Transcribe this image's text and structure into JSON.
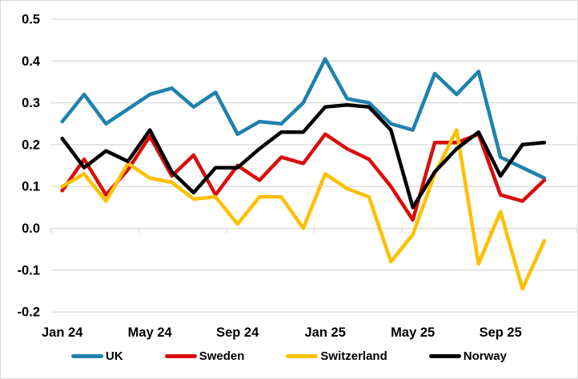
{
  "chart_data": {
    "type": "line",
    "title": "",
    "xlabel": "",
    "ylabel": "",
    "categories": [
      "Jan 24",
      "Feb 24",
      "Mar 24",
      "Apr 24",
      "May 24",
      "Jun 24",
      "Jul 24",
      "Aug 24",
      "Sep 24",
      "Oct 24",
      "Nov 24",
      "Dec 24",
      "Jan 25",
      "Feb 25",
      "Mar 25",
      "Apr 25",
      "May 25",
      "Jun 25",
      "Jul 25",
      "Aug 25",
      "Sep 25",
      "Oct 25",
      "Nov 25"
    ],
    "x_tick_labels": [
      "Jan 24",
      "May 24",
      "Sep 24",
      "Jan 25",
      "May 25",
      "Sep 25"
    ],
    "x_tick_every": 4,
    "y_ticks": [
      "0.5",
      "0.4",
      "0.3",
      "0.2",
      "0.1",
      "0.0",
      "-0.1",
      "-0.2"
    ],
    "ylim": [
      -0.2,
      0.5
    ],
    "grid": true,
    "legend_position": "bottom",
    "gridline_color": "#D9D9D9",
    "series": [
      {
        "name": "UK",
        "color": "#1F81AD",
        "values": [
          0.255,
          0.32,
          0.25,
          0.285,
          0.32,
          0.335,
          0.29,
          0.325,
          0.225,
          0.255,
          0.25,
          0.3,
          0.405,
          0.31,
          0.3,
          0.25,
          0.235,
          0.37,
          0.32,
          0.375,
          0.17,
          0.145,
          0.12
        ]
      },
      {
        "name": "Sweden",
        "color": "#D90D0D",
        "values": [
          0.09,
          0.165,
          0.08,
          0.14,
          0.22,
          0.125,
          0.175,
          0.08,
          0.15,
          0.115,
          0.17,
          0.155,
          0.225,
          0.19,
          0.165,
          0.1,
          0.02,
          0.205,
          0.205,
          0.225,
          0.08,
          0.065,
          0.115
        ]
      },
      {
        "name": "Switzerland",
        "color": "#FFC000",
        "values": [
          0.1,
          0.13,
          0.065,
          0.155,
          0.12,
          0.11,
          0.07,
          0.075,
          0.01,
          0.075,
          0.075,
          0.0,
          0.13,
          0.095,
          0.075,
          -0.08,
          -0.015,
          0.13,
          0.235,
          -0.085,
          0.04,
          -0.145,
          -0.03
        ]
      },
      {
        "name": "Norway",
        "color": "#000000",
        "values": [
          0.215,
          0.145,
          0.185,
          0.16,
          0.235,
          0.135,
          0.085,
          0.145,
          0.145,
          0.19,
          0.23,
          0.23,
          0.29,
          0.295,
          0.29,
          0.235,
          0.05,
          0.135,
          0.19,
          0.23,
          0.125,
          0.2,
          0.205
        ]
      }
    ]
  }
}
